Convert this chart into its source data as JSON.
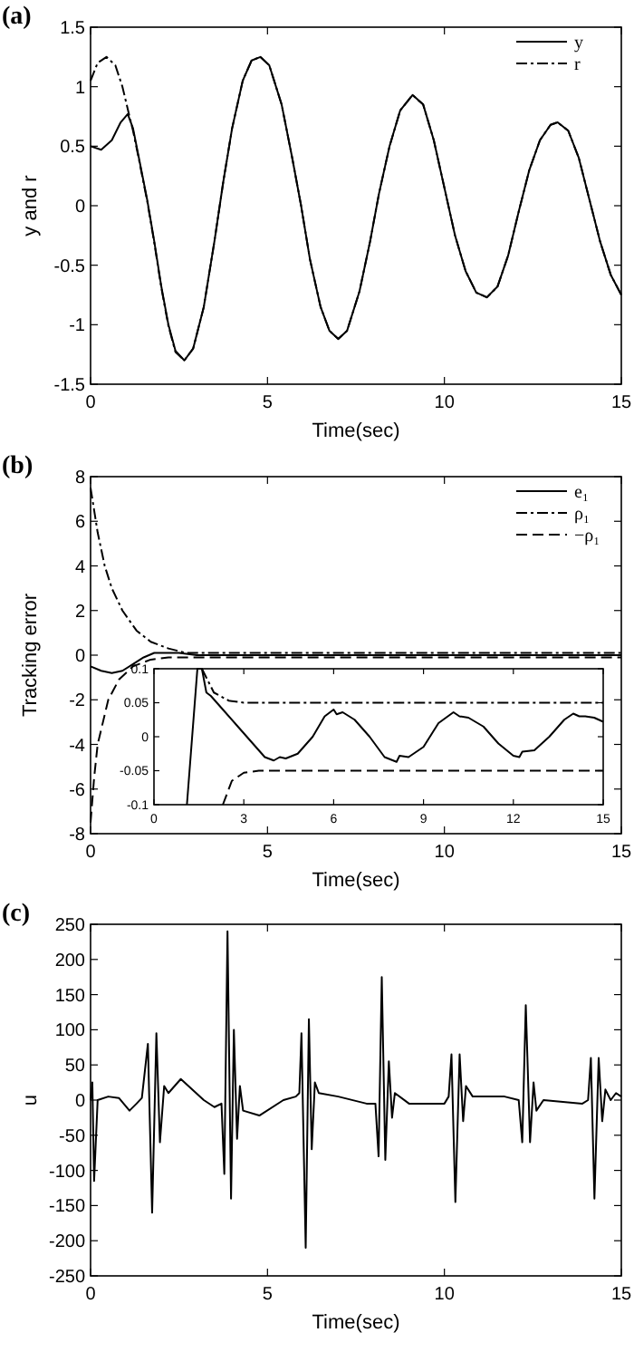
{
  "chart_data": [
    {
      "type": "line",
      "title": "(a)",
      "xlabel": "Time(sec)",
      "ylabel": "y and r",
      "xlim": [
        0,
        15
      ],
      "ylim": [
        -1.5,
        1.5
      ],
      "xticks": [
        0,
        5,
        10,
        15
      ],
      "yticks": [
        -1.5,
        -1,
        -0.5,
        0,
        0.5,
        1,
        1.5
      ],
      "legend": "top right",
      "series": [
        {
          "name": "y",
          "color": "#000000",
          "line_style": "solid",
          "x": [
            0,
            0.3,
            0.6,
            0.85,
            1.05,
            1.2,
            1.4,
            1.6,
            1.8,
            2.0,
            2.2,
            2.4,
            2.65,
            2.9,
            3.2,
            3.5,
            3.75,
            4.0,
            4.3,
            4.55,
            4.8,
            5.05,
            5.4,
            5.7,
            5.95,
            6.2,
            6.5,
            6.75,
            7.0,
            7.25,
            7.6,
            7.9,
            8.15,
            8.45,
            8.75,
            9.1,
            9.4,
            9.7,
            10.0,
            10.3,
            10.6,
            10.9,
            11.2,
            11.5,
            11.8,
            12.1,
            12.4,
            12.7,
            13.0,
            13.2,
            13.5,
            13.8,
            14.1,
            14.4,
            14.7,
            15.0
          ],
          "values": [
            0.5,
            0.47,
            0.55,
            0.7,
            0.77,
            0.65,
            0.35,
            0.05,
            -0.3,
            -0.68,
            -1.0,
            -1.22,
            -1.3,
            -1.2,
            -0.85,
            -0.3,
            0.2,
            0.65,
            1.05,
            1.22,
            1.25,
            1.18,
            0.85,
            0.4,
            0.0,
            -0.45,
            -0.85,
            -1.05,
            -1.12,
            -1.05,
            -0.72,
            -0.3,
            0.1,
            0.5,
            0.8,
            0.93,
            0.85,
            0.55,
            0.15,
            -0.25,
            -0.55,
            -0.73,
            -0.77,
            -0.68,
            -0.42,
            -0.05,
            0.3,
            0.55,
            0.68,
            0.7,
            0.63,
            0.4,
            0.05,
            -0.3,
            -0.58,
            -0.75
          ]
        },
        {
          "name": "r",
          "color": "#000000",
          "line_style": "dashdot",
          "x": [
            0,
            0.2,
            0.45,
            0.7,
            0.9,
            1.1,
            1.2,
            1.4,
            1.6,
            1.8,
            2.0,
            2.2,
            2.4,
            2.65,
            2.9,
            3.2,
            3.5,
            3.75,
            4.0,
            4.3,
            4.55,
            4.8,
            5.05,
            5.4,
            5.7,
            5.95,
            6.2,
            6.5,
            6.75,
            7.0,
            7.25,
            7.6,
            7.9,
            8.15,
            8.45,
            8.75,
            9.1,
            9.4,
            9.7,
            10.0,
            10.3,
            10.6,
            10.9,
            11.2,
            11.5,
            11.8,
            12.1,
            12.4,
            12.7,
            13.0,
            13.2,
            13.5,
            13.8,
            14.1,
            14.4,
            14.7,
            15.0
          ],
          "values": [
            1.05,
            1.2,
            1.25,
            1.18,
            1.0,
            0.75,
            0.63,
            0.34,
            0.04,
            -0.31,
            -0.69,
            -1.01,
            -1.23,
            -1.3,
            -1.2,
            -0.85,
            -0.3,
            0.2,
            0.65,
            1.05,
            1.22,
            1.25,
            1.18,
            0.85,
            0.4,
            0.0,
            -0.45,
            -0.85,
            -1.05,
            -1.12,
            -1.05,
            -0.72,
            -0.3,
            0.1,
            0.5,
            0.8,
            0.93,
            0.85,
            0.55,
            0.15,
            -0.25,
            -0.55,
            -0.73,
            -0.77,
            -0.68,
            -0.42,
            -0.05,
            0.3,
            0.55,
            0.68,
            0.7,
            0.63,
            0.4,
            0.05,
            -0.3,
            -0.58,
            -0.75
          ]
        }
      ]
    },
    {
      "type": "line",
      "title": "(b)",
      "xlabel": "Time(sec)",
      "ylabel": "Tracking error",
      "xlim": [
        0,
        15
      ],
      "ylim": [
        -8,
        8
      ],
      "xticks": [
        0,
        5,
        10,
        15
      ],
      "yticks": [
        -8,
        -6,
        -4,
        -2,
        0,
        2,
        4,
        6,
        8
      ],
      "legend": "top right",
      "series": [
        {
          "name": "e₁",
          "color": "#000000",
          "line_style": "solid",
          "x": [
            0,
            0.3,
            0.6,
            0.9,
            1.2,
            1.5,
            1.8,
            2.1,
            2.5,
            3,
            4,
            6,
            8,
            10,
            12,
            14,
            15
          ],
          "values": [
            -0.5,
            -0.7,
            -0.8,
            -0.7,
            -0.4,
            -0.1,
            0.1,
            0.1,
            0.1,
            0,
            0,
            0,
            0,
            0,
            0,
            0,
            0
          ]
        },
        {
          "name": "ρ₁",
          "color": "#000000",
          "line_style": "dashdot",
          "x": [
            0,
            0.1,
            0.2,
            0.4,
            0.6,
            0.9,
            1.3,
            1.7,
            2.2,
            2.7,
            3.2,
            15
          ],
          "values": [
            7.5,
            6.5,
            5.5,
            4,
            3,
            2,
            1.1,
            0.6,
            0.3,
            0.1,
            0.1,
            0.1
          ]
        },
        {
          "name": "−ρ₁",
          "color": "#000000",
          "line_style": "dashed",
          "x": [
            0,
            0.1,
            0.2,
            0.35,
            0.5,
            0.8,
            1.2,
            1.7,
            2.2,
            3,
            15
          ],
          "values": [
            -7.5,
            -5.5,
            -4,
            -3,
            -2,
            -1.1,
            -0.5,
            -0.2,
            -0.1,
            -0.1,
            -0.1
          ]
        }
      ]
    },
    {
      "type": "line",
      "xlim": [
        0,
        15
      ],
      "ylim": [
        -0.1,
        0.1
      ],
      "xticks": [
        0,
        3,
        6,
        9,
        12,
        15
      ],
      "yticks": [
        -0.1,
        -0.05,
        0,
        0.05,
        0.1
      ],
      "series": [
        {
          "color": "#000000",
          "line_style": "solid",
          "x": [
            1.1,
            1.45,
            1.6,
            1.75,
            1.9,
            2.3,
            2.8,
            3.3,
            3.7,
            4.0,
            4.2,
            4.4,
            4.8,
            5.3,
            5.7,
            6.0,
            6.1,
            6.3,
            6.7,
            7.2,
            7.7,
            8.1,
            8.2,
            8.5,
            9.0,
            9.5,
            10.0,
            10.2,
            10.5,
            11.0,
            11.5,
            12.0,
            12.2,
            12.3,
            12.7,
            13.2,
            13.7,
            14.0,
            14.2,
            14.4,
            14.7,
            15
          ],
          "values": [
            -0.1,
            0.1,
            0.1,
            0.065,
            0.06,
            0.04,
            0.015,
            -0.01,
            -0.03,
            -0.035,
            -0.03,
            -0.032,
            -0.025,
            0.0,
            0.03,
            0.04,
            0.033,
            0.036,
            0.025,
            0.0,
            -0.03,
            -0.037,
            -0.028,
            -0.03,
            -0.015,
            0.02,
            0.036,
            0.03,
            0.028,
            0.015,
            -0.01,
            -0.028,
            -0.03,
            -0.022,
            -0.02,
            0.0,
            0.025,
            0.034,
            0.03,
            0.03,
            0.028,
            0.022
          ]
        },
        {
          "color": "#000000",
          "line_style": "dashdot",
          "x": [
            1.6,
            2,
            2.5,
            3,
            15
          ],
          "values": [
            0.1,
            0.065,
            0.053,
            0.05,
            0.05
          ]
        },
        {
          "color": "#000000",
          "line_style": "dashed",
          "x": [
            2.3,
            2.6,
            3,
            3.5,
            15
          ],
          "values": [
            -0.1,
            -0.065,
            -0.053,
            -0.05,
            -0.05
          ]
        }
      ]
    },
    {
      "type": "line",
      "title": "(c)",
      "xlabel": "Time(sec)",
      "ylabel": "u",
      "xlim": [
        0,
        15
      ],
      "ylim": [
        -250,
        250
      ],
      "xticks": [
        0,
        5,
        10,
        15
      ],
      "yticks": [
        -250,
        -200,
        -150,
        -100,
        -50,
        0,
        50,
        100,
        150,
        200,
        250
      ],
      "series": [
        {
          "color": "#000000",
          "line_style": "solid",
          "x": [
            0,
            0.05,
            0.1,
            0.2,
            0.5,
            0.8,
            1.1,
            1.3,
            1.45,
            1.62,
            1.74,
            1.86,
            1.96,
            2.08,
            2.2,
            2.55,
            3.2,
            3.5,
            3.7,
            3.78,
            3.87,
            3.97,
            4.05,
            4.14,
            4.22,
            4.31,
            4.77,
            5.45,
            5.8,
            5.9,
            5.96,
            6.08,
            6.17,
            6.25,
            6.34,
            6.45,
            7,
            7.8,
            8.05,
            8.14,
            8.23,
            8.33,
            8.43,
            8.52,
            8.6,
            9,
            10,
            10.12,
            10.2,
            10.31,
            10.43,
            10.53,
            10.61,
            10.8,
            11.7,
            12.1,
            12.2,
            12.3,
            12.42,
            12.52,
            12.6,
            12.8,
            13.9,
            14.06,
            14.14,
            14.24,
            14.36,
            14.46,
            14.55,
            14.7,
            14.85,
            15
          ],
          "values": [
            0,
            25,
            -115,
            0,
            5,
            3,
            -15,
            -5,
            3,
            80,
            -160,
            95,
            -60,
            20,
            10,
            30,
            0,
            -10,
            -5,
            -105,
            240,
            -140,
            100,
            -55,
            20,
            -15,
            -22,
            0,
            5,
            10,
            95,
            -210,
            115,
            -70,
            25,
            10,
            5,
            -5,
            -5,
            -80,
            175,
            -85,
            55,
            -25,
            10,
            -5,
            -5,
            5,
            65,
            -145,
            65,
            -30,
            20,
            5,
            5,
            0,
            -60,
            135,
            -60,
            25,
            -15,
            0,
            -5,
            0,
            60,
            -140,
            60,
            -30,
            15,
            0,
            10,
            5
          ]
        }
      ]
    }
  ]
}
